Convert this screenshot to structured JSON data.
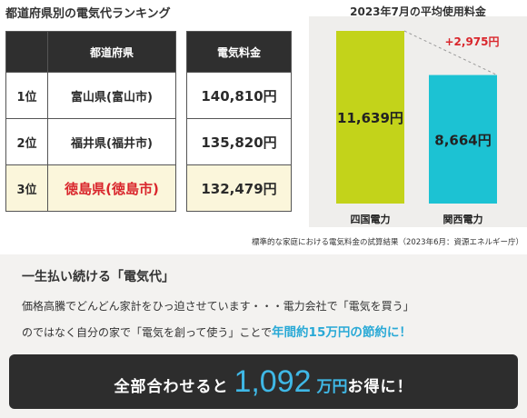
{
  "ranking": {
    "title": "都道府県別の電気代ランキング",
    "header_prefecture": "都道府県",
    "header_price": "電気料金",
    "rows": [
      {
        "rank": "1位",
        "prefecture": "富山県(富山市)",
        "price": "140,810円"
      },
      {
        "rank": "2位",
        "prefecture": "福井県(福井市)",
        "price": "135,820円"
      },
      {
        "rank": "3位",
        "prefecture": "徳島県(徳島市)",
        "price": "132,479円"
      }
    ]
  },
  "chart_data": {
    "type": "bar",
    "title": "2023年7月の平均使用料金",
    "categories": [
      "四国電力",
      "関西電力"
    ],
    "values": [
      11639,
      8664
    ],
    "value_labels": [
      "11,639円",
      "8,664円"
    ],
    "difference_label": "+2,975円",
    "colors": [
      "#c3d31a",
      "#1cc2d3"
    ],
    "ylim": [
      0,
      11639
    ],
    "source": "標準的な家庭における電気料金の試算結果（2023年6月：資源エネルギー庁）"
  },
  "panel": {
    "lead_title": "一生払い続ける「電気代」",
    "line1": "価格高騰でどんどん家計をひっ迫させています・・・電力会社で「電気を買う」",
    "line2_prefix": "のではなく自分の家で「電気を創って使う」ことで",
    "line2_highlight": "年間約15万円の節約に！",
    "cta_pre": "全部合わせると",
    "cta_number": "1,092",
    "cta_unit": "万円",
    "cta_post": "お得に！"
  },
  "colors": {
    "accent_blue": "#29a9d6",
    "highlight_red": "#d9262c",
    "third_row_bg": "#fbf6db"
  }
}
